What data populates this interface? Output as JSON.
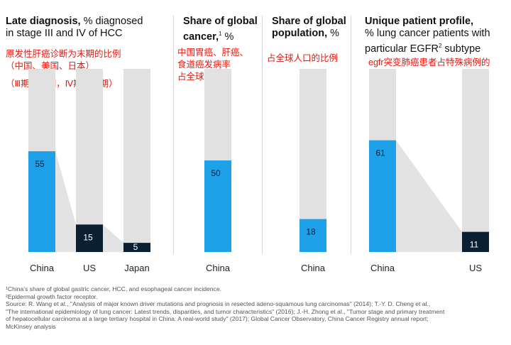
{
  "colors": {
    "blue": "#1ea1e8",
    "navy": "#0b1f33",
    "track": "#e1e1e1",
    "connector": "#e3e3e3"
  },
  "panels": {
    "p1": {
      "title_bold": "Late diagnosis,",
      "title_rest": " % diagnosed",
      "title_line2": "in stage III and IV of HCC",
      "note_lines": [
        "原发性肝癌诊断为末期的比例",
        "（中国、美国、日本）",
        "（Ⅲ期为中期，Ⅳ期为末期）"
      ]
    },
    "p2": {
      "title_bold": "Share of global",
      "title_line2_bold": "cancer,",
      "title_sup": "1",
      "title_rest": " %",
      "note_lines": [
        "中国胃癌、肝癌、",
        "食道癌发病率",
        "占全球的比例"
      ]
    },
    "p3": {
      "title_bold": "Share of global",
      "title_line2_bold": "population,",
      "title_rest": " %",
      "note_lines": [
        "占全球人口的比例"
      ]
    },
    "p4": {
      "title_bold": "Unique patient profile,",
      "title_line2": "% lung cancer patients with",
      "title_line3_a": "particular EGFR",
      "title_sup": "2",
      "title_line3_b": " subtype",
      "note_lines": [
        "egfr突变肺癌患者占特殊病例的",
        "比例"
      ]
    }
  },
  "chart_data": [
    {
      "type": "bar",
      "categories": [
        "China",
        "US",
        "Japan"
      ],
      "values": [
        55,
        15,
        5
      ],
      "ylim": [
        0,
        100
      ]
    },
    {
      "type": "bar",
      "categories": [
        "China"
      ],
      "values": [
        50
      ],
      "ylim": [
        0,
        100
      ]
    },
    {
      "type": "bar",
      "categories": [
        "China"
      ],
      "values": [
        18
      ],
      "ylim": [
        0,
        100
      ]
    },
    {
      "type": "bar",
      "categories": [
        "China",
        "US"
      ],
      "values": [
        61,
        11
      ],
      "ylim": [
        0,
        100
      ]
    }
  ],
  "footnotes": [
    "¹China's share of global gastric cancer, HCC, and esophageal cancer incidence.",
    "²Epidermal growth factor receptor.",
    "Source: R. Wang et al., \"Analysis of major known driver mutations and prognosis in resected adeno-squamous lung carcinomas\" (2014); T.-Y. D. Cheng et al.,",
    "\"The international epidemiology of lung cancer: Latest trends, disparities, and tumor characteristics\" (2016); J.-H. Zhong et al., \"Tumor stage and primary treatment",
    "of hepatocellular carcinoma at a large tertiary hospital in China: A real-world study\" (2017); Global Cancer Observatory, China Cancer Registry annual report;",
    "McKinsey analysis"
  ]
}
